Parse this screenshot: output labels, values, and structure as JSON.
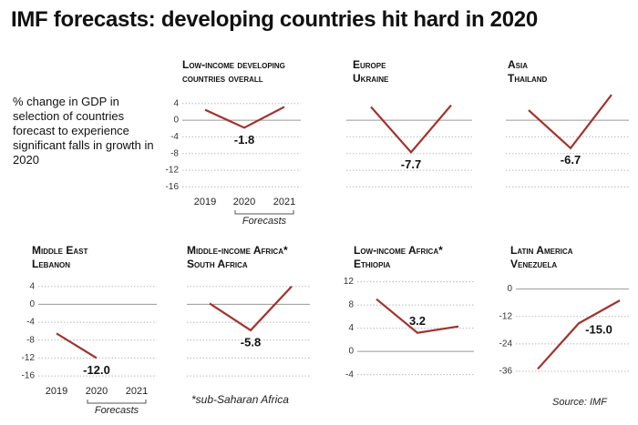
{
  "title": "IMF forecasts: developing countries hit hard in 2020",
  "subtitle": "% change in GDP in selection of countries forecast to experience significant falls in growth in 2020",
  "note": "*sub-Saharan Africa",
  "source": "Source: IMF",
  "chart_data": [
    {
      "type": "line",
      "title": "Low-income developing countries overall",
      "categories": [
        "2019",
        "2020",
        "2021"
      ],
      "x_note": "Forecasts",
      "series": [
        {
          "color": "#a3312b",
          "values": [
            2.5,
            -1.8,
            3.2
          ],
          "value_labels": [
            null,
            "-1.8",
            null
          ]
        }
      ],
      "ylim": [
        -17,
        7
      ],
      "yticks": [
        4,
        0,
        -4,
        -8,
        -12,
        -16
      ],
      "tick_labels": true,
      "grid": true
    },
    {
      "type": "line",
      "title": "Europe",
      "subtitle": "Ukraine",
      "categories": [
        null,
        null,
        null
      ],
      "series": [
        {
          "color": "#a3312b",
          "values": [
            3.2,
            -7.7,
            3.6
          ],
          "value_labels": [
            null,
            "-7.7",
            null
          ]
        }
      ],
      "ylim": [
        -17,
        7
      ],
      "yticks": [
        0,
        -4,
        -8,
        -12,
        -16
      ],
      "tick_labels": false,
      "grid": true
    },
    {
      "type": "line",
      "title": "Asia",
      "subtitle": "Thailand",
      "categories": [
        null,
        null,
        null
      ],
      "series": [
        {
          "color": "#a3312b",
          "values": [
            2.4,
            -6.7,
            6.1
          ],
          "value_labels": [
            null,
            "-6.7",
            null
          ]
        }
      ],
      "ylim": [
        -17,
        7
      ],
      "yticks": [
        0,
        -4,
        -8,
        -12,
        -16
      ],
      "tick_labels": false,
      "grid": true
    },
    {
      "type": "line",
      "title": "Middle East",
      "subtitle": "Lebanon",
      "categories": [
        "2019",
        "2020",
        "2021"
      ],
      "x_note": "Forecasts",
      "series": [
        {
          "color": "#a3312b",
          "values": [
            -6.5,
            -12.0,
            null
          ],
          "value_labels": [
            null,
            "-12.0",
            null
          ]
        }
      ],
      "ylim": [
        -17,
        7
      ],
      "yticks": [
        4,
        0,
        -4,
        -8,
        -12,
        -16
      ],
      "tick_labels": true,
      "grid": true
    },
    {
      "type": "line",
      "title": "Middle-income Africa*",
      "subtitle": "South Africa",
      "categories": [
        null,
        null,
        null
      ],
      "series": [
        {
          "color": "#a3312b",
          "values": [
            0.2,
            -5.8,
            4.0
          ],
          "value_labels": [
            null,
            "-5.8",
            null
          ]
        }
      ],
      "ylim": [
        -17,
        7
      ],
      "yticks": [
        4,
        0,
        -4,
        -8,
        -12,
        -16
      ],
      "tick_labels": false,
      "grid": true
    },
    {
      "type": "line",
      "title": "Low-income Africa*",
      "subtitle": "Ethiopia",
      "categories": [
        null,
        null,
        null
      ],
      "series": [
        {
          "color": "#a3312b",
          "values": [
            9.0,
            3.2,
            4.3
          ],
          "value_labels": [
            null,
            "3.2",
            null
          ]
        }
      ],
      "ylim": [
        -5,
        13.5
      ],
      "yticks": [
        12,
        8,
        4,
        0,
        -4
      ],
      "tick_labels": true,
      "grid": true
    },
    {
      "type": "line",
      "title": "Latin America",
      "subtitle": "Venezuela",
      "categories": [
        null,
        null,
        null
      ],
      "series": [
        {
          "color": "#a3312b",
          "values": [
            -35.0,
            -15.0,
            -5.0
          ],
          "value_labels": [
            null,
            "-15.0",
            null
          ]
        }
      ],
      "ylim": [
        -40,
        7
      ],
      "yticks": [
        0,
        -12,
        -24,
        -36
      ],
      "tick_labels": true,
      "grid": true
    }
  ]
}
